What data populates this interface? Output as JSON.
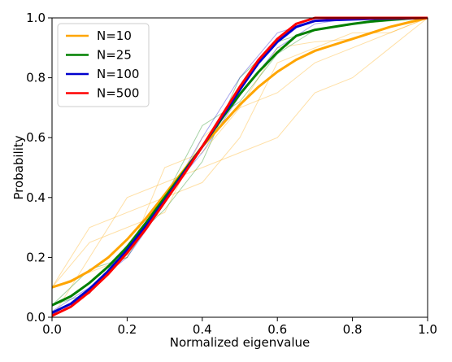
{
  "chart_data": {
    "type": "line",
    "xlabel": "Normalized eigenvalue",
    "ylabel": "Probability",
    "xlim": [
      0.0,
      1.0
    ],
    "ylim": [
      0.0,
      1.0
    ],
    "xticks": [
      "0.0",
      "0.2",
      "0.4",
      "0.6",
      "0.8",
      "1.0"
    ],
    "yticks": [
      "0.0",
      "0.2",
      "0.4",
      "0.6",
      "0.8",
      "1.0"
    ],
    "grid": false,
    "legend_position": "top-left",
    "series": [
      {
        "name": "N=10",
        "color": "#ffa500",
        "x": [
          0.0,
          0.05,
          0.1,
          0.15,
          0.2,
          0.25,
          0.3,
          0.35,
          0.4,
          0.45,
          0.5,
          0.55,
          0.6,
          0.65,
          0.7,
          0.75,
          0.8,
          0.85,
          0.9,
          0.95,
          1.0
        ],
        "y": [
          0.1,
          0.12,
          0.155,
          0.2,
          0.26,
          0.33,
          0.41,
          0.49,
          0.57,
          0.64,
          0.71,
          0.77,
          0.82,
          0.86,
          0.89,
          0.91,
          0.93,
          0.95,
          0.97,
          0.985,
          1.0
        ]
      },
      {
        "name": "N=25",
        "color": "#008000",
        "x": [
          0.0,
          0.05,
          0.1,
          0.15,
          0.2,
          0.25,
          0.3,
          0.35,
          0.4,
          0.45,
          0.5,
          0.55,
          0.6,
          0.65,
          0.7,
          0.75,
          0.8,
          0.85,
          0.9,
          0.95,
          1.0
        ],
        "y": [
          0.04,
          0.07,
          0.115,
          0.17,
          0.235,
          0.315,
          0.4,
          0.485,
          0.57,
          0.66,
          0.745,
          0.82,
          0.885,
          0.94,
          0.96,
          0.97,
          0.98,
          0.988,
          0.994,
          0.998,
          1.0
        ]
      },
      {
        "name": "N=100",
        "color": "#0000cd",
        "x": [
          0.0,
          0.05,
          0.1,
          0.15,
          0.2,
          0.25,
          0.3,
          0.35,
          0.4,
          0.45,
          0.5,
          0.55,
          0.6,
          0.65,
          0.7,
          0.75,
          0.8,
          0.85,
          0.9,
          0.95,
          1.0
        ],
        "y": [
          0.015,
          0.045,
          0.095,
          0.155,
          0.225,
          0.305,
          0.39,
          0.48,
          0.57,
          0.665,
          0.76,
          0.85,
          0.92,
          0.97,
          0.99,
          0.993,
          0.995,
          0.997,
          0.998,
          0.999,
          1.0
        ]
      },
      {
        "name": "N=500",
        "color": "#ff0000",
        "x": [
          0.0,
          0.05,
          0.1,
          0.15,
          0.2,
          0.25,
          0.3,
          0.35,
          0.4,
          0.45,
          0.5,
          0.55,
          0.6,
          0.65,
          0.7,
          0.75,
          0.8,
          0.85,
          0.9,
          0.95,
          1.0
        ],
        "y": [
          0.005,
          0.035,
          0.085,
          0.145,
          0.215,
          0.295,
          0.385,
          0.475,
          0.57,
          0.67,
          0.77,
          0.86,
          0.93,
          0.98,
          1.0,
          1.0,
          1.0,
          1.0,
          1.0,
          1.0,
          1.0
        ]
      }
    ],
    "faint_samples": [
      {
        "color": "#ffa500",
        "x": [
          0.0,
          0.1,
          0.2,
          0.3,
          0.4,
          0.5,
          0.6,
          0.7,
          0.8,
          0.9,
          1.0
        ],
        "y": [
          0.1,
          0.3,
          0.35,
          0.4,
          0.45,
          0.6,
          0.85,
          0.9,
          0.95,
          0.95,
          1.0
        ]
      },
      {
        "color": "#ffa500",
        "x": [
          0.0,
          0.1,
          0.2,
          0.3,
          0.4,
          0.5,
          0.6,
          0.7,
          0.8,
          0.9,
          1.0
        ],
        "y": [
          0.0,
          0.2,
          0.4,
          0.45,
          0.5,
          0.55,
          0.6,
          0.75,
          0.8,
          0.9,
          1.0
        ]
      },
      {
        "color": "#ffa500",
        "x": [
          0.0,
          0.1,
          0.2,
          0.3,
          0.4,
          0.5,
          0.6,
          0.7,
          0.8,
          0.9,
          1.0
        ],
        "y": [
          0.1,
          0.15,
          0.2,
          0.5,
          0.55,
          0.7,
          0.9,
          0.92,
          0.93,
          0.97,
          1.0
        ]
      },
      {
        "color": "#ffa500",
        "x": [
          0.0,
          0.1,
          0.2,
          0.3,
          0.4,
          0.5,
          0.6,
          0.7,
          0.8,
          0.9,
          1.0
        ],
        "y": [
          0.1,
          0.25,
          0.3,
          0.35,
          0.6,
          0.7,
          0.75,
          0.85,
          0.9,
          0.95,
          1.0
        ]
      },
      {
        "color": "#008000",
        "x": [
          0.0,
          0.1,
          0.2,
          0.3,
          0.4,
          0.5,
          0.6,
          0.7,
          0.8,
          0.9,
          1.0
        ],
        "y": [
          0.04,
          0.16,
          0.2,
          0.4,
          0.64,
          0.72,
          0.88,
          0.96,
          0.98,
          0.99,
          1.0
        ]
      },
      {
        "color": "#008000",
        "x": [
          0.0,
          0.1,
          0.2,
          0.3,
          0.4,
          0.5,
          0.6,
          0.7,
          0.8,
          0.9,
          1.0
        ],
        "y": [
          0.04,
          0.08,
          0.24,
          0.36,
          0.52,
          0.8,
          0.92,
          0.96,
          0.98,
          0.99,
          1.0
        ]
      },
      {
        "color": "#0000cd",
        "x": [
          0.0,
          0.1,
          0.2,
          0.3,
          0.4,
          0.5,
          0.6,
          0.7,
          0.8,
          0.9,
          1.0
        ],
        "y": [
          0.02,
          0.1,
          0.2,
          0.38,
          0.6,
          0.8,
          0.95,
          0.99,
          1.0,
          1.0,
          1.0
        ]
      },
      {
        "color": "#0000cd",
        "x": [
          0.0,
          0.1,
          0.2,
          0.3,
          0.4,
          0.5,
          0.6,
          0.7,
          0.8,
          0.9,
          1.0
        ],
        "y": [
          0.01,
          0.08,
          0.24,
          0.4,
          0.55,
          0.74,
          0.9,
          0.98,
          1.0,
          1.0,
          1.0
        ]
      }
    ]
  }
}
